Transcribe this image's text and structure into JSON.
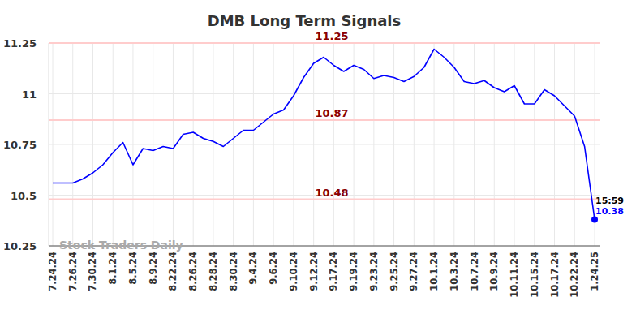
{
  "chart_data": {
    "type": "line",
    "title": "DMB Long Term Signals",
    "categories": [
      "7.24.24",
      null,
      "7.26.24",
      null,
      "7.30.24",
      null,
      "8.1.24",
      null,
      "8.5.24",
      null,
      "8.9.24",
      null,
      "8.22.24",
      null,
      "8.26.24",
      null,
      "8.28.24",
      null,
      "8.30.24",
      null,
      "9.4.24",
      null,
      "9.6.24",
      null,
      "9.10.24",
      null,
      "9.12.24",
      null,
      "9.17.24",
      null,
      "9.19.24",
      null,
      "9.23.24",
      null,
      "9.25.24",
      null,
      "9.27.24",
      null,
      "10.1.24",
      null,
      "10.3.24",
      null,
      "10.7.24",
      null,
      "10.9.24",
      null,
      "10.11.24",
      null,
      "10.15.24",
      null,
      "10.17.24",
      null,
      "10.22.24",
      null,
      "1.24.25"
    ],
    "series": [
      {
        "name": "DMB",
        "color": "#0000ff",
        "values": [
          10.56,
          10.56,
          10.56,
          10.58,
          10.61,
          10.65,
          10.71,
          10.76,
          10.65,
          10.73,
          10.72,
          10.74,
          10.73,
          10.8,
          10.81,
          10.78,
          10.765,
          10.74,
          10.78,
          10.82,
          10.82,
          10.86,
          10.9,
          10.92,
          10.99,
          11.08,
          11.15,
          11.18,
          11.14,
          11.11,
          11.14,
          11.12,
          11.075,
          11.09,
          11.08,
          11.06,
          11.085,
          11.13,
          11.22,
          11.18,
          11.13,
          11.06,
          11.05,
          11.065,
          11.03,
          11.01,
          11.04,
          10.95,
          10.95,
          11.02,
          10.99,
          10.94,
          10.89,
          10.74,
          10.38
        ]
      }
    ],
    "ylim": [
      10.25,
      11.25
    ],
    "yticks": [
      10.25,
      10.5,
      10.75,
      11,
      11.25
    ],
    "grid": true,
    "signal_lines": [
      11.25,
      10.87,
      10.48
    ],
    "annotations": [
      "15:59",
      "10.38"
    ],
    "watermark": "Stock Traders Daily"
  }
}
